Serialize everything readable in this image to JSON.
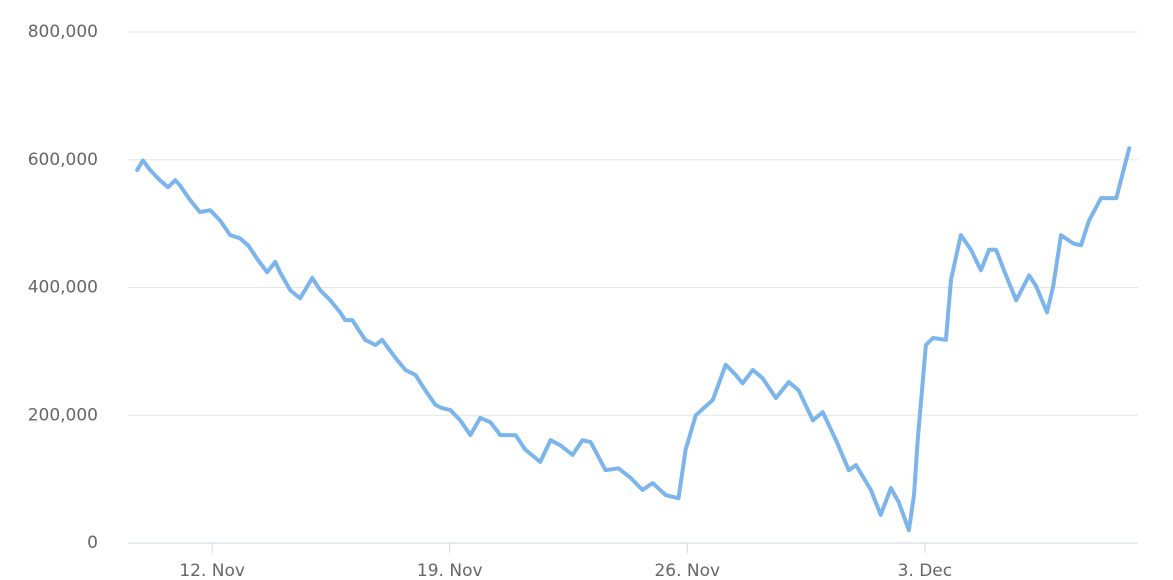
{
  "chart_data": {
    "type": "line",
    "x": [
      9.79,
      9.96,
      10.17,
      10.46,
      10.7,
      10.91,
      11.05,
      11.35,
      11.64,
      11.94,
      12.23,
      12.53,
      12.82,
      13.06,
      13.35,
      13.62,
      13.86,
      14.0,
      14.3,
      14.59,
      14.95,
      15.18,
      15.48,
      15.77,
      15.92,
      16.13,
      16.51,
      16.81,
      17.01,
      17.4,
      17.69,
      17.99,
      18.28,
      18.58,
      18.78,
      19.02,
      19.31,
      19.61,
      19.9,
      20.2,
      20.49,
      20.94,
      21.23,
      21.67,
      21.97,
      22.26,
      22.62,
      22.91,
      23.15,
      23.59,
      23.97,
      24.33,
      24.68,
      24.98,
      25.36,
      25.74,
      25.95,
      26.25,
      26.75,
      27.13,
      27.43,
      27.63,
      27.93,
      28.22,
      28.61,
      28.99,
      29.28,
      29.7,
      29.99,
      30.38,
      30.76,
      30.97,
      31.41,
      31.7,
      32.0,
      32.23,
      32.53,
      32.68,
      32.79,
      33.03,
      33.24,
      33.62,
      33.77,
      34.06,
      34.36,
      34.65,
      34.89,
      35.1,
      35.39,
      35.69,
      36.07,
      36.28,
      36.6,
      36.78,
      37.01,
      37.37,
      37.6,
      37.84,
      38.19,
      38.64,
      39.02
    ],
    "series": [
      {
        "color": "#7cb5ec",
        "values": [
          584000,
          599000,
          584000,
          568000,
          557000,
          568000,
          560000,
          537000,
          518000,
          521000,
          505000,
          482000,
          477000,
          466000,
          443000,
          424000,
          440000,
          424000,
          396000,
          383000,
          415000,
          396000,
          380000,
          361000,
          349000,
          349000,
          318000,
          310000,
          318000,
          290000,
          271000,
          263000,
          239000,
          216000,
          211000,
          208000,
          192000,
          169000,
          196000,
          189000,
          169000,
          169000,
          146000,
          127000,
          161000,
          153000,
          138000,
          161000,
          158000,
          114000,
          117000,
          102000,
          83000,
          94000,
          75000,
          70000,
          146000,
          200000,
          224000,
          279000,
          263000,
          250000,
          271000,
          258000,
          227000,
          252000,
          239000,
          192000,
          205000,
          161000,
          114000,
          122000,
          83000,
          44000,
          86000,
          64000,
          20000,
          75000,
          161000,
          310000,
          321000,
          318000,
          412000,
          482000,
          459000,
          427000,
          459000,
          459000,
          419000,
          380000,
          419000,
          402000,
          361000,
          402000,
          482000,
          469000,
          466000,
          505000,
          540000,
          540000,
          618000
        ]
      }
    ],
    "xlim": [
      9.52,
      39.28
    ],
    "xticks": [
      {
        "value": 12,
        "label": "12. Nov"
      },
      {
        "value": 19,
        "label": "19. Nov"
      },
      {
        "value": 26,
        "label": "26. Nov"
      },
      {
        "value": 33,
        "label": "3. Dec"
      }
    ],
    "ylim": [
      0,
      800000
    ],
    "yticks": [
      0,
      {
        "value": 200000,
        "label": "200,000"
      },
      {
        "value": 400000,
        "label": "400,000"
      },
      {
        "value": 600000,
        "label": "600,000"
      },
      {
        "value": 800000,
        "label": "800,000"
      }
    ],
    "grid": true
  }
}
